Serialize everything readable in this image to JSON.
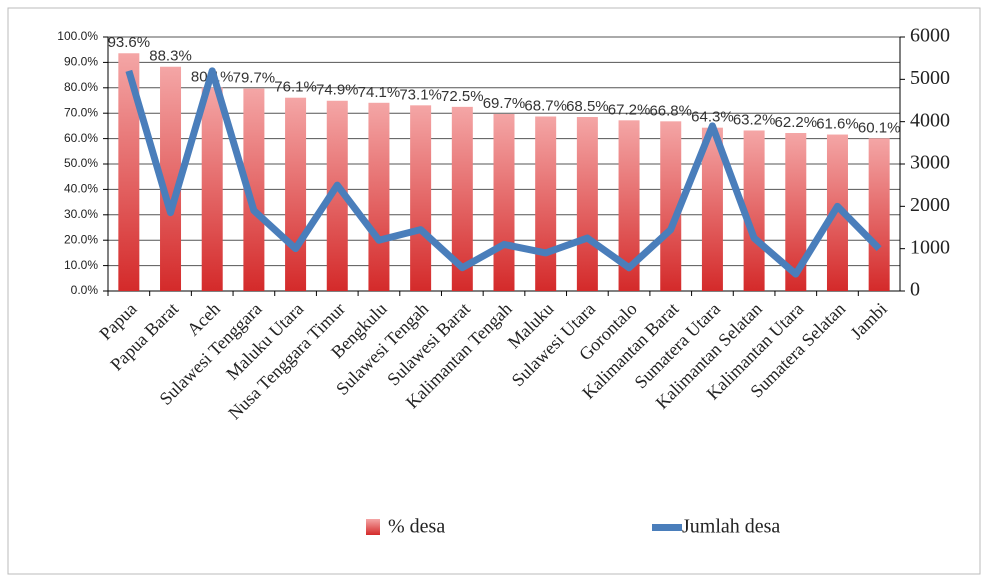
{
  "chart_data": {
    "type": "bar_line",
    "categories": [
      "Papua",
      "Papua Barat",
      "Aceh",
      "Sulawesi Tenggara",
      "Maluku Utara",
      "Nusa Tenggara Timur",
      "Bengkulu",
      "Sulawesi Tengah",
      "Sulawesi Barat",
      "Kalimantan Tengah",
      "Maluku",
      "Sulawesi Utara",
      "Gorontalo",
      "Kalimantan Barat",
      "Sumatera Utara",
      "Kalimantan Selatan",
      "Kalimantan Utara",
      "Sumatera Selatan",
      "Jambi"
    ],
    "series": [
      {
        "name": "% desa",
        "color": "#e03c3c",
        "values": [
          93.6,
          88.3,
          80.1,
          79.7,
          76.1,
          74.9,
          74.1,
          73.1,
          72.5,
          69.7,
          68.7,
          68.5,
          67.2,
          66.8,
          64.3,
          63.2,
          62.2,
          61.6,
          60.1
        ],
        "value_labels": [
          "93.6%",
          "88.3%",
          "80.1%",
          "79.7%",
          "76.1%",
          "74.9%",
          "74.1%",
          "73.1%",
          "72.5%",
          "69.7%",
          "68.7%",
          "68.5%",
          "67.2%",
          "66.8%",
          "64.3%",
          "63.2%",
          "62.2%",
          "61.6%",
          "60.1%"
        ]
      },
      {
        "name": "Jumlah desa",
        "color": "#4a7ebb",
        "axis": "y2",
        "values": [
          5200,
          1850,
          5200,
          1900,
          1000,
          2500,
          1200,
          1450,
          550,
          1100,
          900,
          1250,
          550,
          1450,
          3900,
          1250,
          400,
          2000,
          1000
        ]
      }
    ],
    "ylim": [
      0,
      100
    ],
    "yticks": [
      {
        "value": 0,
        "label": "0.0%"
      },
      {
        "value": 10,
        "label": "10.0%"
      },
      {
        "value": 20,
        "label": "20.0%"
      },
      {
        "value": 30,
        "label": "30.0%"
      },
      {
        "value": 40,
        "label": "40.0%"
      },
      {
        "value": 50,
        "label": "50.0%"
      },
      {
        "value": 60,
        "label": "60.0%"
      },
      {
        "value": 70,
        "label": "70.0%"
      },
      {
        "value": 80,
        "label": "80.0%"
      },
      {
        "value": 90,
        "label": "90.0%"
      },
      {
        "value": 100,
        "label": "100.0%"
      }
    ],
    "y2lim": [
      0,
      6000
    ],
    "y2ticks": [
      0,
      1000,
      2000,
      3000,
      4000,
      5000,
      6000
    ],
    "grid": true
  }
}
